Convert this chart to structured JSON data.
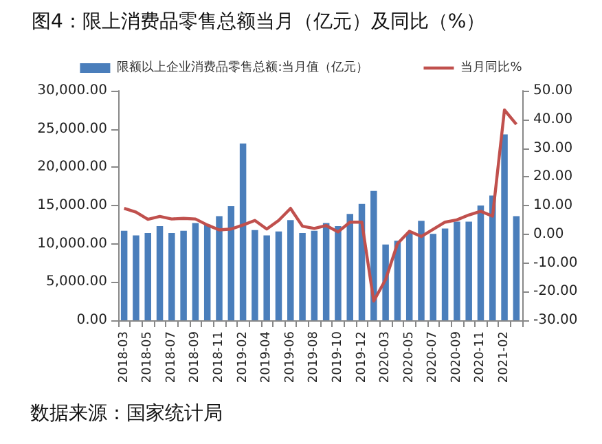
{
  "chart_data": {
    "type": "bar",
    "title": "图4：限上消费品零售总额当月（亿元）及同比（%）",
    "categories": [
      "2018-03",
      null,
      "2018-05",
      null,
      "2018-07",
      null,
      "2018-09",
      null,
      "2018-11",
      null,
      "2019-02",
      null,
      "2019-04",
      null,
      "2019-06",
      null,
      "2019-08",
      null,
      "2019-10",
      null,
      "2019-12",
      null,
      "2020-03",
      null,
      "2020-05",
      null,
      "2020-07",
      null,
      "2020-09",
      null,
      "2020-11",
      null,
      "2021-02",
      null
    ],
    "series": [
      {
        "name": "限额以上企业消费品零售总额:当月值（亿元）",
        "color": "#4a7ebb",
        "values": [
          11700,
          11100,
          11400,
          12300,
          11400,
          11700,
          12700,
          12500,
          13600,
          14900,
          23100,
          11800,
          11100,
          11600,
          13100,
          11400,
          11700,
          12700,
          12300,
          13900,
          15200,
          16900,
          9900,
          10400,
          11400,
          13000,
          11300,
          12000,
          12900,
          12900,
          15000,
          16300,
          24300,
          13600
        ]
      },
      {
        "name": "当月同比%",
        "type": "line",
        "axis": "y2",
        "color": "#c0504d",
        "values": [
          9.0,
          7.7,
          5.2,
          6.2,
          5.3,
          5.5,
          5.3,
          3.2,
          1.5,
          1.8,
          3.2,
          4.8,
          1.8,
          4.8,
          9.0,
          2.8,
          2.0,
          3.0,
          0.8,
          4.2,
          4.2,
          -23.3,
          -15.8,
          -3.3,
          1.0,
          -0.8,
          1.7,
          4.2,
          5.0,
          6.7,
          8.0,
          6.3,
          43.3,
          38.3
        ]
      }
    ],
    "ylim": [
      0,
      30000
    ],
    "yticks": [
      {
        "value": 0,
        "label": "0.00"
      },
      {
        "value": 5000,
        "label": "5,000.00"
      },
      {
        "value": 10000,
        "label": "10,000.00"
      },
      {
        "value": 15000,
        "label": "15,000.00"
      },
      {
        "value": 20000,
        "label": "20,000.00"
      },
      {
        "value": 25000,
        "label": "25,000.00"
      },
      {
        "value": 30000,
        "label": "30,000.00"
      }
    ],
    "y2lim": [
      -30,
      50
    ],
    "y2ticks": [
      {
        "value": -30,
        "label": "-30.00"
      },
      {
        "value": -20,
        "label": "-20.00"
      },
      {
        "value": -10,
        "label": "-10.00"
      },
      {
        "value": 0,
        "label": "0.00"
      },
      {
        "value": 10,
        "label": "10.00"
      },
      {
        "value": 20,
        "label": "20.00"
      },
      {
        "value": 30,
        "label": "30.00"
      },
      {
        "value": 40,
        "label": "40.00"
      },
      {
        "value": 50,
        "label": "50.00"
      }
    ],
    "grid": false,
    "legend": "top",
    "marker": "none",
    "annotations": [
      "数据来源：国家统计局"
    ]
  }
}
